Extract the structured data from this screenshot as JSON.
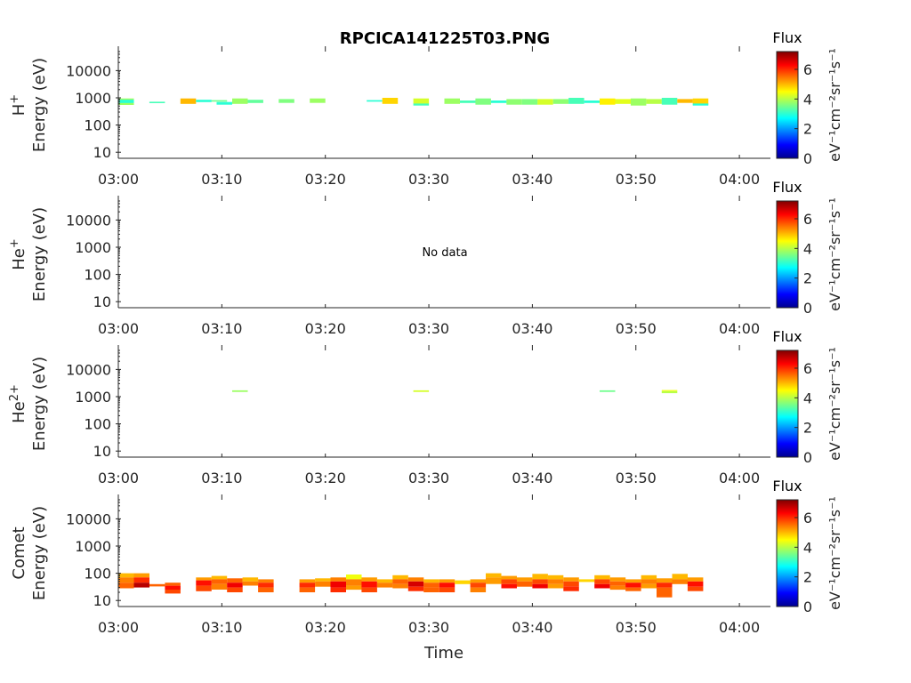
{
  "title": "RPCICA141225T03.PNG",
  "xlabel": "Time",
  "chart_data": {
    "type": "heatmap",
    "x_ticks": [
      "03:00",
      "03:10",
      "03:20",
      "03:30",
      "03:40",
      "03:50",
      "04:00"
    ],
    "x_range_minutes": [
      0,
      63
    ],
    "y_scale": "log",
    "y_ticks": [
      10,
      100,
      1000,
      10000
    ],
    "y_ticks_labels": [
      "10",
      "100",
      "1000",
      "10000"
    ],
    "y_range": [
      6,
      50000
    ],
    "colorbar": {
      "label": "Flux",
      "unit": "eV⁻¹cm⁻²sr⁻¹s⁻¹",
      "range": [
        0,
        7.2
      ],
      "ticks": [
        0,
        2,
        4,
        6
      ],
      "ticks_labels": [
        "0",
        "2",
        "4",
        "6"
      ],
      "colormap": "jet"
    },
    "panels": [
      {
        "ion_label": "H",
        "ion_superscript": "+",
        "ylabel": "Energy (eV)",
        "no_data": false,
        "no_data_text": "",
        "cells": [
          [
            0,
            1.5,
            550,
            950,
            3.8
          ],
          [
            0,
            1.5,
            650,
            850,
            3.0
          ],
          [
            3,
            4.5,
            640,
            720,
            3.2
          ],
          [
            6,
            7.5,
            600,
            950,
            5.0
          ],
          [
            7.5,
            9,
            700,
            850,
            3.0
          ],
          [
            9,
            10.5,
            720,
            820,
            3.5
          ],
          [
            9.5,
            11,
            560,
            700,
            3.0
          ],
          [
            11,
            12.5,
            600,
            950,
            3.8
          ],
          [
            12.5,
            14,
            650,
            850,
            3.4
          ],
          [
            15.5,
            17,
            650,
            900,
            3.6
          ],
          [
            18.5,
            20,
            650,
            950,
            3.8
          ],
          [
            24,
            25.5,
            720,
            820,
            3.0
          ],
          [
            25.5,
            27,
            600,
            1000,
            4.8
          ],
          [
            28.5,
            30,
            600,
            950,
            4.2
          ],
          [
            28.5,
            30,
            520,
            620,
            3.2
          ],
          [
            31.5,
            33,
            600,
            950,
            3.8
          ],
          [
            33,
            34.5,
            650,
            800,
            3.2
          ],
          [
            34.5,
            36,
            560,
            950,
            3.6
          ],
          [
            36,
            37.5,
            650,
            800,
            3.0
          ],
          [
            37.5,
            39,
            560,
            900,
            3.7
          ],
          [
            39,
            40.5,
            560,
            900,
            3.6
          ],
          [
            40.5,
            42,
            560,
            900,
            4.2
          ],
          [
            42,
            43.5,
            600,
            900,
            3.7
          ],
          [
            43.5,
            45,
            600,
            1000,
            3.2
          ],
          [
            45,
            46.5,
            650,
            800,
            3.0
          ],
          [
            46.5,
            48,
            560,
            950,
            4.6
          ],
          [
            48,
            49.5,
            600,
            900,
            4.3
          ],
          [
            49.5,
            51,
            520,
            950,
            3.8
          ],
          [
            51,
            52.5,
            600,
            900,
            4.0
          ],
          [
            52.5,
            54,
            560,
            1000,
            3.2
          ],
          [
            54,
            55.5,
            650,
            900,
            5.0
          ],
          [
            55.5,
            57,
            560,
            950,
            4.8
          ],
          [
            55.5,
            57,
            520,
            620,
            3.0
          ]
        ]
      },
      {
        "ion_label": "He",
        "ion_superscript": "+",
        "ylabel": "Energy (eV)",
        "no_data": true,
        "no_data_text": "No data",
        "cells": []
      },
      {
        "ion_label": "He",
        "ion_superscript": "2+",
        "ylabel": "Energy (eV)",
        "no_data": false,
        "no_data_text": "",
        "cells": [
          [
            11,
            12.5,
            1480,
            1700,
            3.8
          ],
          [
            28.5,
            30,
            1480,
            1700,
            4.2
          ],
          [
            46.5,
            48,
            1480,
            1700,
            3.5
          ],
          [
            52.5,
            54,
            1350,
            1600,
            4.0
          ],
          [
            52.5,
            54,
            1600,
            1750,
            4.4
          ]
        ]
      },
      {
        "ion_label": "Comet",
        "ion_superscript": "",
        "ylabel": "Energy (eV)",
        "no_data": false,
        "no_data_text": "",
        "cells": [
          [
            0,
            1.5,
            70,
            100,
            5.0
          ],
          [
            0,
            1.5,
            45,
            70,
            5.4
          ],
          [
            0,
            1.5,
            28,
            45,
            5.6
          ],
          [
            1.5,
            3,
            70,
            100,
            5.2
          ],
          [
            1.5,
            3,
            45,
            70,
            6.0
          ],
          [
            1.5,
            3,
            30,
            45,
            6.8
          ],
          [
            3,
            4.5,
            33,
            40,
            5.6
          ],
          [
            4.5,
            6,
            35,
            45,
            5.6
          ],
          [
            4.5,
            6,
            25,
            35,
            6.2
          ],
          [
            4.5,
            6,
            18,
            25,
            5.8
          ],
          [
            7.5,
            9,
            55,
            70,
            5.2
          ],
          [
            7.5,
            9,
            35,
            55,
            6.2
          ],
          [
            7.5,
            9,
            22,
            35,
            5.8
          ],
          [
            9,
            10.5,
            60,
            80,
            5.0
          ],
          [
            9,
            10.5,
            40,
            60,
            5.6
          ],
          [
            9,
            10.5,
            25,
            40,
            5.4
          ],
          [
            10.5,
            12,
            45,
            65,
            5.6
          ],
          [
            10.5,
            12,
            30,
            45,
            6.4
          ],
          [
            10.5,
            12,
            20,
            30,
            5.8
          ],
          [
            12,
            13.5,
            50,
            70,
            5.0
          ],
          [
            12,
            13.5,
            35,
            50,
            5.4
          ],
          [
            13.5,
            15,
            45,
            60,
            5.4
          ],
          [
            13.5,
            15,
            30,
            45,
            6.0
          ],
          [
            13.5,
            15,
            20,
            30,
            5.6
          ],
          [
            17.5,
            19,
            45,
            60,
            5.2
          ],
          [
            17.5,
            19,
            30,
            45,
            6.0
          ],
          [
            17.5,
            19,
            20,
            30,
            5.6
          ],
          [
            19,
            20.5,
            50,
            65,
            5.0
          ],
          [
            19,
            20.5,
            32,
            50,
            5.4
          ],
          [
            20.5,
            22,
            50,
            70,
            5.4
          ],
          [
            20.5,
            22,
            30,
            50,
            6.4
          ],
          [
            20.5,
            22,
            20,
            30,
            6.0
          ],
          [
            22,
            23.5,
            60,
            90,
            4.4
          ],
          [
            22,
            23.5,
            35,
            60,
            5.4
          ],
          [
            22,
            23.5,
            25,
            35,
            5.2
          ],
          [
            23.5,
            25,
            50,
            70,
            5.2
          ],
          [
            23.5,
            25,
            30,
            50,
            6.2
          ],
          [
            23.5,
            25,
            20,
            30,
            5.8
          ],
          [
            25,
            26.5,
            45,
            60,
            5.0
          ],
          [
            25,
            26.5,
            30,
            45,
            5.4
          ],
          [
            26.5,
            28,
            60,
            85,
            5.0
          ],
          [
            26.5,
            28,
            40,
            60,
            5.6
          ],
          [
            26.5,
            28,
            28,
            40,
            5.4
          ],
          [
            28,
            29.5,
            50,
            70,
            5.4
          ],
          [
            28,
            29.5,
            32,
            50,
            6.6
          ],
          [
            28,
            29.5,
            22,
            32,
            6.0
          ],
          [
            29.5,
            31,
            45,
            60,
            5.0
          ],
          [
            29.5,
            31,
            30,
            45,
            5.6
          ],
          [
            29.5,
            31,
            20,
            30,
            5.6
          ],
          [
            31,
            32.5,
            45,
            60,
            5.2
          ],
          [
            31,
            32.5,
            30,
            45,
            6.2
          ],
          [
            31,
            32.5,
            20,
            30,
            5.8
          ],
          [
            32.5,
            34,
            40,
            55,
            4.8
          ],
          [
            34,
            35.5,
            45,
            60,
            5.2
          ],
          [
            34,
            35.5,
            30,
            45,
            5.8
          ],
          [
            34,
            35.5,
            20,
            30,
            5.4
          ],
          [
            35.5,
            37,
            70,
            100,
            5.0
          ],
          [
            35.5,
            37,
            40,
            70,
            5.2
          ],
          [
            37,
            38.5,
            60,
            80,
            5.2
          ],
          [
            37,
            38.5,
            40,
            60,
            5.8
          ],
          [
            37,
            38.5,
            28,
            40,
            6.2
          ],
          [
            38.5,
            40,
            50,
            70,
            5.2
          ],
          [
            38.5,
            40,
            32,
            50,
            5.6
          ],
          [
            40,
            41.5,
            60,
            95,
            5.0
          ],
          [
            40,
            41.5,
            40,
            60,
            5.8
          ],
          [
            40,
            41.5,
            28,
            40,
            6.4
          ],
          [
            41.5,
            43,
            60,
            85,
            5.0
          ],
          [
            41.5,
            43,
            40,
            60,
            5.4
          ],
          [
            41.5,
            43,
            28,
            40,
            5.2
          ],
          [
            43,
            44.5,
            50,
            70,
            5.2
          ],
          [
            43,
            44.5,
            33,
            50,
            5.8
          ],
          [
            43,
            44.5,
            22,
            33,
            6.0
          ],
          [
            44.5,
            46,
            48,
            60,
            4.8
          ],
          [
            46,
            47.5,
            60,
            85,
            5.0
          ],
          [
            46,
            47.5,
            40,
            60,
            5.8
          ],
          [
            46,
            47.5,
            28,
            40,
            6.4
          ],
          [
            47.5,
            49,
            50,
            70,
            5.2
          ],
          [
            47.5,
            49,
            35,
            50,
            5.6
          ],
          [
            47.5,
            49,
            25,
            35,
            5.4
          ],
          [
            49,
            50.5,
            45,
            60,
            5.2
          ],
          [
            49,
            50.5,
            30,
            45,
            6.2
          ],
          [
            49,
            50.5,
            22,
            30,
            5.6
          ],
          [
            50.5,
            52,
            60,
            85,
            5.0
          ],
          [
            50.5,
            52,
            40,
            60,
            5.4
          ],
          [
            50.5,
            52,
            28,
            40,
            5.2
          ],
          [
            52,
            53.5,
            45,
            65,
            5.2
          ],
          [
            52,
            53.5,
            30,
            45,
            6.0
          ],
          [
            52,
            53.5,
            13,
            30,
            5.6
          ],
          [
            53.5,
            55,
            60,
            95,
            5.0
          ],
          [
            53.5,
            55,
            40,
            60,
            5.4
          ],
          [
            55,
            56.5,
            50,
            70,
            5.2
          ],
          [
            55,
            56.5,
            32,
            50,
            6.2
          ],
          [
            55,
            56.5,
            22,
            32,
            5.8
          ]
        ]
      }
    ]
  }
}
